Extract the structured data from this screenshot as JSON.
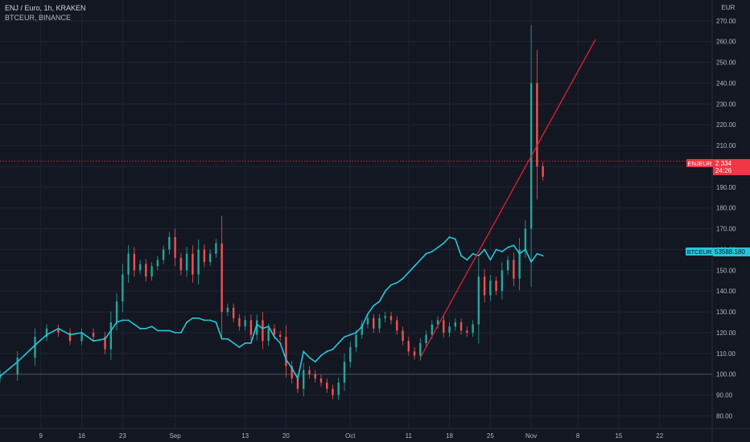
{
  "legend": {
    "main": "ENJ / Euro, 1h, KRAKEN",
    "compare": "BTCEUR, BINANCE"
  },
  "currency_unit": "EUR",
  "price_labels": {
    "enj": {
      "name": "ENJEUR",
      "value": "2.334",
      "countdown": "24:26",
      "color": "#f23645"
    },
    "btc": {
      "name": "BTCEUR",
      "value": "53588.180",
      "color": "#26c6da"
    }
  },
  "colors": {
    "background": "#131722",
    "grid": "#1f2433",
    "axis_text": "#b2b5be",
    "up_candle": "#26a69a",
    "down_candle": "#ef5350",
    "btc_line": "#26c6da",
    "trend_line": "#e0212f"
  },
  "chart_data": {
    "type": "line",
    "title": "ENJ / Euro, 1h, KRAKEN",
    "y_axis": {
      "ticks": [
        "270.00",
        "260.00",
        "250.00",
        "240.00",
        "230.00",
        "220.00",
        "210.00",
        "200.00",
        "190.00",
        "180.00",
        "170.00",
        "160.00",
        "150.00",
        "140.00",
        "130.00",
        "120.00",
        "110.00",
        "100.00",
        "90.00",
        "80.00"
      ],
      "ylim": [
        74,
        280
      ],
      "unit": "EUR",
      "scale": "percent relative to start (100.00)"
    },
    "x_axis": {
      "ticks": [
        "9",
        "16",
        "23",
        "Sep",
        "13",
        "20",
        "Oct",
        "11",
        "18",
        "25",
        "Nov",
        "8",
        "15",
        "22"
      ],
      "tick_days": [
        9,
        16,
        23,
        32,
        44,
        51,
        62,
        72,
        79,
        86,
        93,
        101,
        108,
        115
      ],
      "xlim": [
        2,
        124
      ],
      "unit": "day (Aug 1 = day 1)"
    },
    "horizontal_lines": [
      {
        "y": 202.5,
        "style": "dotted",
        "color": "#f23645"
      },
      {
        "y": 100,
        "style": "solid",
        "color": "#5d606b"
      }
    ],
    "series": [
      {
        "kind": "candles",
        "color_up": "#26a69a",
        "color_down": "#ef5350",
        "x": [
          2,
          5,
          8,
          10,
          12,
          14,
          16,
          18,
          20,
          21,
          22,
          23,
          24,
          25,
          26,
          27,
          28,
          29,
          30,
          31,
          32,
          33,
          34,
          35,
          36,
          37,
          38,
          39,
          40,
          41,
          42,
          43,
          44,
          45,
          46,
          47,
          48,
          49,
          50,
          51,
          52,
          53,
          54,
          55,
          56,
          57,
          58,
          59,
          60,
          61,
          62,
          63,
          64,
          65,
          66,
          67,
          68,
          69,
          70,
          71,
          72,
          73,
          74,
          75,
          76,
          77,
          78,
          79,
          80,
          81,
          82,
          83,
          84,
          85,
          86,
          87,
          88,
          89,
          90,
          91,
          92,
          93,
          94,
          95
        ],
        "y": [
          100,
          108,
          118,
          122,
          120,
          116,
          120,
          118,
          112,
          125,
          135,
          148,
          158,
          150,
          153,
          147,
          152,
          155,
          160,
          166,
          156,
          150,
          158,
          148,
          160,
          154,
          158,
          163,
          130,
          132,
          127,
          123,
          126,
          119,
          126,
          116,
          122,
          119,
          118,
          104,
          98,
          93,
          102,
          100,
          98,
          96,
          93,
          90,
          96,
          106,
          113,
          119,
          124,
          127,
          122,
          127,
          128,
          126,
          121,
          116,
          111,
          109,
          115,
          119,
          124,
          126,
          120,
          123,
          125,
          121,
          120,
          124,
          147,
          138,
          145,
          140,
          150,
          155,
          146,
          160,
          170,
          240,
          200,
          195
        ]
      },
      {
        "kind": "line",
        "color": "#26c6da",
        "x": [
          2,
          5,
          8,
          10,
          12,
          14,
          16,
          18,
          20,
          21,
          22,
          23,
          24,
          25,
          26,
          27,
          28,
          29,
          30,
          31,
          32,
          33,
          34,
          35,
          36,
          37,
          38,
          39,
          40,
          41,
          42,
          43,
          44,
          45,
          46,
          47,
          48,
          49,
          50,
          51,
          52,
          53,
          54,
          55,
          56,
          57,
          58,
          59,
          60,
          61,
          62,
          63,
          64,
          65,
          66,
          67,
          68,
          69,
          70,
          71,
          72,
          73,
          74,
          75,
          76,
          77,
          78,
          79,
          80,
          81,
          82,
          83,
          84,
          85,
          86,
          87,
          88,
          89,
          90,
          91,
          92,
          93,
          94,
          95
        ],
        "y": [
          99,
          106,
          114,
          119,
          122,
          119,
          120,
          116,
          117,
          121,
          125,
          126,
          126,
          124,
          122,
          122,
          123,
          121,
          121,
          121,
          120,
          120,
          125,
          127,
          127,
          126,
          126,
          125,
          117,
          117,
          115,
          113,
          115,
          115,
          124,
          122,
          123,
          118,
          115,
          107,
          103,
          98,
          111,
          108,
          106,
          109,
          111,
          112,
          115,
          118,
          119,
          120,
          123,
          129,
          133,
          135,
          140,
          143,
          144,
          146,
          149,
          152,
          155,
          158,
          159,
          161,
          163,
          166,
          165,
          157,
          155,
          158,
          157,
          160,
          155,
          160,
          159,
          161,
          162,
          158,
          160,
          154,
          158,
          157
        ]
      },
      {
        "kind": "trendline",
        "color": "#e0212f",
        "x": [
          74,
          104
        ],
        "y": [
          108,
          261
        ]
      }
    ]
  }
}
